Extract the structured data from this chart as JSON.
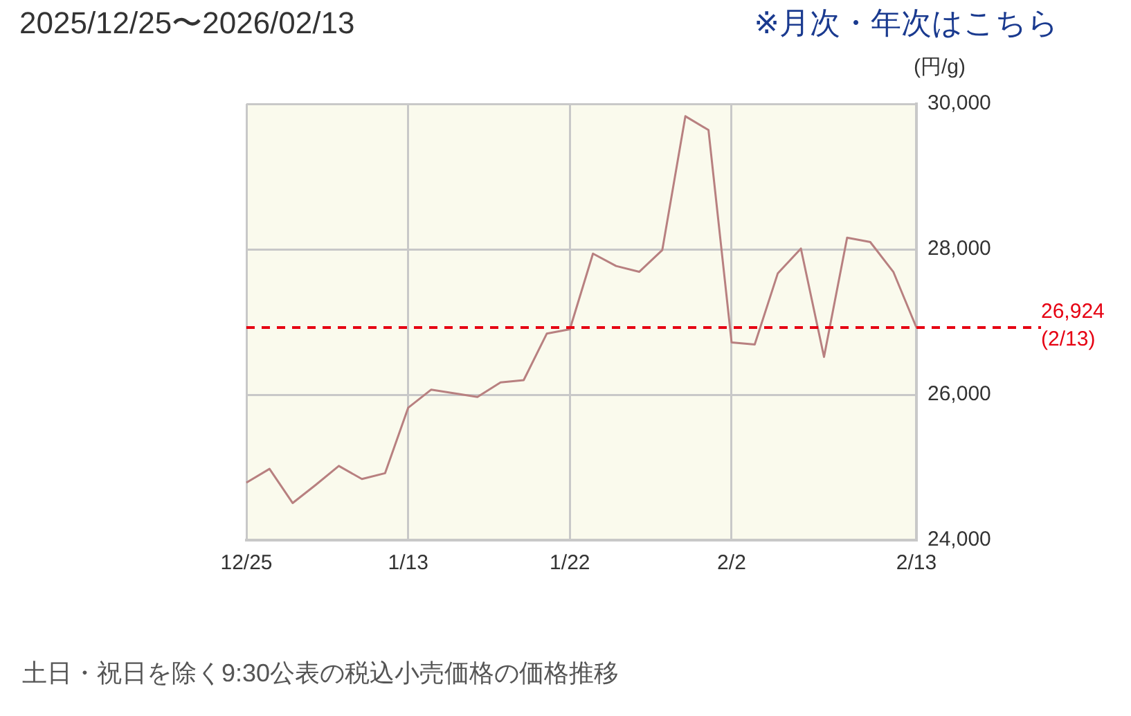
{
  "chart_data": {
    "type": "line",
    "title": "2025/12/25〜2026/02/13",
    "subtitle": "※月次・年次はこちら",
    "ylabel": "(円/g)",
    "categories": [
      "12/25",
      null,
      null,
      null,
      null,
      null,
      null,
      "1/13",
      null,
      null,
      null,
      null,
      null,
      null,
      "1/22",
      null,
      null,
      null,
      null,
      null,
      null,
      "2/2",
      null,
      null,
      null,
      null,
      null,
      null,
      null,
      "2/13"
    ],
    "series": [
      {
        "color": "#b88080",
        "values": [
          24790,
          24980,
          24510,
          24760,
          25020,
          24840,
          24920,
          25820,
          26070,
          26020,
          25970,
          26170,
          26200,
          26840,
          26900,
          27940,
          27770,
          27690,
          27990,
          29830,
          29640,
          26720,
          26690,
          27670,
          28010,
          26520,
          28160,
          28100,
          27690,
          26924
        ]
      }
    ],
    "ylim": [
      24000,
      30000
    ],
    "yticks": [
      {
        "value": 24000,
        "label": "24,000"
      },
      {
        "value": 26000,
        "label": "26,000"
      },
      {
        "value": 28000,
        "label": "28,000"
      },
      {
        "value": 30000,
        "label": "30,000"
      }
    ],
    "grid": true,
    "legend": false,
    "marker": "none",
    "line_style": "solid",
    "ref_lines": [
      {
        "axis": "y",
        "value": 26924,
        "label": "26,924\n(2/13)",
        "color": "#e60012",
        "line_style": "dashed"
      }
    ],
    "annotations": [
      "土日・祝日を除く9:30公表の税込小売価格の価格推移"
    ]
  }
}
